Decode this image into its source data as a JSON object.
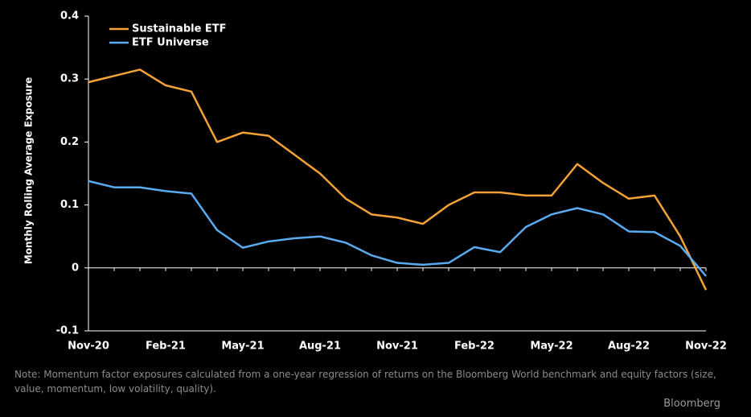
{
  "chart_data": {
    "type": "line",
    "y_label": "Monthly Rolling Average Exposure",
    "categories": [
      "Nov-20",
      null,
      null,
      "Feb-21",
      null,
      null,
      "May-21",
      null,
      null,
      "Aug-21",
      null,
      null,
      "Nov-21",
      null,
      null,
      "Feb-22",
      null,
      null,
      "May-22",
      null,
      null,
      "Aug-22",
      null,
      null,
      "Nov-22"
    ],
    "series": [
      {
        "name": "Sustainable ETF",
        "color": "#f4a236",
        "values": [
          0.295,
          0.305,
          0.315,
          0.29,
          0.28,
          0.2,
          0.215,
          0.21,
          0.18,
          0.15,
          0.11,
          0.085,
          0.08,
          0.07,
          0.1,
          0.12,
          0.12,
          0.115,
          0.115,
          0.165,
          0.135,
          0.11,
          0.115,
          0.05,
          -0.035
        ]
      },
      {
        "name": "ETF Universe",
        "color": "#5aaaf0",
        "values": [
          0.138,
          0.128,
          0.128,
          0.122,
          0.118,
          0.06,
          0.032,
          0.042,
          0.047,
          0.05,
          0.04,
          0.02,
          0.008,
          0.005,
          0.008,
          0.033,
          0.025,
          0.065,
          0.085,
          0.095,
          0.085,
          0.058,
          0.057,
          0.035,
          -0.013
        ]
      }
    ],
    "ylim": [
      -0.1,
      0.4
    ],
    "yticks": [
      0.4,
      0.3,
      0.2,
      0.1,
      0,
      -0.1
    ],
    "legend": "upper left",
    "note": "Note: Momentum factor exposures calculated from a one-year regression of returns on the Bloomberg World benchmark and equity factors (size, value, momentum, low volatility, quality).",
    "source": "Bloomberg"
  }
}
